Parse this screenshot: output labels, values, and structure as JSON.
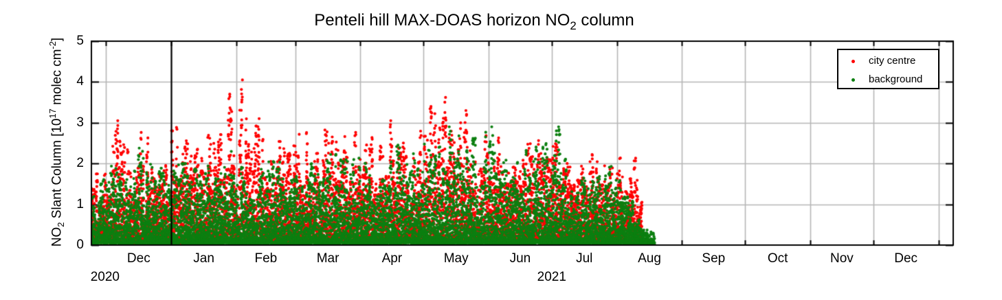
{
  "title": {
    "p1": "Penteli hill MAX-DOAS horizon NO",
    "sub": "2",
    "p2": " column"
  },
  "y_axis": {
    "label": {
      "p1": "NO",
      "sub": "2",
      "p2": " Slant Column [10",
      "sup1": "17",
      "p3": " molec cm",
      "sup2": "-2",
      "p4": "]"
    },
    "ticks": [
      "0",
      "1",
      "2",
      "3",
      "4",
      "5"
    ],
    "lim": [
      0,
      5
    ]
  },
  "x_axis": {
    "start_date": "2020-11-24",
    "days_total": 410,
    "tick_days": [
      7,
      38,
      69,
      97,
      128,
      158,
      189,
      219,
      250,
      281,
      311,
      342,
      372,
      403
    ],
    "month_labels": [
      {
        "text": "Dec",
        "mid_day": 22.5
      },
      {
        "text": "Jan",
        "mid_day": 53.5
      },
      {
        "text": "Feb",
        "mid_day": 83
      },
      {
        "text": "Mar",
        "mid_day": 112.5
      },
      {
        "text": "Apr",
        "mid_day": 143
      },
      {
        "text": "May",
        "mid_day": 173.5
      },
      {
        "text": "Jun",
        "mid_day": 204
      },
      {
        "text": "Jul",
        "mid_day": 234.5
      },
      {
        "text": "Aug",
        "mid_day": 265.5
      },
      {
        "text": "Sep",
        "mid_day": 296
      },
      {
        "text": "Oct",
        "mid_day": 326.5
      },
      {
        "text": "Nov",
        "mid_day": 357
      },
      {
        "text": "Dec",
        "mid_day": 387.5
      }
    ],
    "year_labels": [
      {
        "text": "2020",
        "mid_day": 6.5
      },
      {
        "text": "2021",
        "mid_day": 219
      }
    ],
    "year_separator_day": 38
  },
  "legend": {
    "items": [
      {
        "label": "city centre",
        "color": "#ff0000"
      },
      {
        "label": "background",
        "color": "#0c7f10"
      }
    ]
  },
  "style": {
    "grid_color": "#b5b5b5",
    "axis_color": "#000000",
    "marker_radius": 2.1
  },
  "chart_data": {
    "type": "scatter",
    "title": "Penteli hill MAX-DOAS horizon NO2 column",
    "xlabel": "",
    "ylabel": "NO2 Slant Column [10^17 molec cm^-2]",
    "ylim": [
      0,
      5
    ],
    "yticks": [
      0,
      1,
      2,
      3,
      4,
      5
    ],
    "x_range": [
      "2020-11-24",
      "2022-01-08"
    ],
    "x_tick_unit": "month",
    "grid": true,
    "legend_position": "top-right",
    "series": [
      {
        "name": "city centre",
        "color": "#ff0000",
        "marker": "dot",
        "data_start_day": 0,
        "data_end_day": 262,
        "daily_max_envelope": [
          [
            0,
            1.8
          ],
          [
            5,
            2.2
          ],
          [
            12,
            3.05
          ],
          [
            18,
            2.3
          ],
          [
            23,
            2.95
          ],
          [
            30,
            2.5
          ],
          [
            36,
            2.6
          ],
          [
            40,
            2.95
          ],
          [
            48,
            2.55
          ],
          [
            55,
            2.9
          ],
          [
            60,
            2.7
          ],
          [
            65,
            3.7
          ],
          [
            71,
            4.05
          ],
          [
            75,
            2.8
          ],
          [
            79,
            3.1
          ],
          [
            85,
            2.6
          ],
          [
            90,
            2.9
          ],
          [
            95,
            2.5
          ],
          [
            101,
            2.95
          ],
          [
            107,
            2.6
          ],
          [
            113,
            2.9
          ],
          [
            119,
            2.6
          ],
          [
            125,
            3.0
          ],
          [
            131,
            2.7
          ],
          [
            137,
            2.6
          ],
          [
            142,
            3.05
          ],
          [
            148,
            2.7
          ],
          [
            152,
            3.1
          ],
          [
            157,
            2.8
          ],
          [
            161,
            3.4
          ],
          [
            168,
            3.62
          ],
          [
            173,
            3.0
          ],
          [
            178,
            3.3
          ],
          [
            184,
            2.7
          ],
          [
            190,
            2.95
          ],
          [
            196,
            2.6
          ],
          [
            204,
            2.85
          ],
          [
            210,
            2.5
          ],
          [
            215,
            2.9
          ],
          [
            222,
            2.95
          ],
          [
            228,
            2.2
          ],
          [
            233,
            1.9
          ],
          [
            238,
            2.5
          ],
          [
            243,
            2.2
          ],
          [
            248,
            2.4
          ],
          [
            253,
            2.3
          ],
          [
            258,
            2.35
          ],
          [
            262,
            1.2
          ]
        ]
      },
      {
        "name": "background",
        "color": "#0c7f10",
        "marker": "dot",
        "data_start_day": 0,
        "data_end_day": 268,
        "daily_max_envelope": [
          [
            0,
            1.2
          ],
          [
            5,
            1.6
          ],
          [
            12,
            2.3
          ],
          [
            18,
            1.8
          ],
          [
            23,
            2.45
          ],
          [
            30,
            1.9
          ],
          [
            36,
            2.1
          ],
          [
            40,
            2.2
          ],
          [
            48,
            1.9
          ],
          [
            55,
            2.1
          ],
          [
            60,
            2.0
          ],
          [
            65,
            2.3
          ],
          [
            71,
            2.4
          ],
          [
            79,
            2.1
          ],
          [
            85,
            2.2
          ],
          [
            92,
            2.0
          ],
          [
            101,
            2.2
          ],
          [
            108,
            2.0
          ],
          [
            115,
            2.3
          ],
          [
            122,
            2.1
          ],
          [
            130,
            2.4
          ],
          [
            137,
            2.2
          ],
          [
            145,
            2.6
          ],
          [
            152,
            2.4
          ],
          [
            160,
            2.6
          ],
          [
            166,
            2.5
          ],
          [
            170,
            2.9
          ],
          [
            178,
            2.6
          ],
          [
            185,
            2.7
          ],
          [
            190,
            2.9
          ],
          [
            196,
            2.4
          ],
          [
            204,
            2.5
          ],
          [
            210,
            2.3
          ],
          [
            215,
            2.7
          ],
          [
            222,
            2.9
          ],
          [
            228,
            1.8
          ],
          [
            233,
            1.7
          ],
          [
            238,
            2.1
          ],
          [
            243,
            1.8
          ],
          [
            248,
            2.0
          ],
          [
            253,
            1.7
          ],
          [
            258,
            1.1
          ],
          [
            262,
            0.45
          ],
          [
            268,
            0.3
          ]
        ]
      }
    ],
    "notable_peaks": [
      {
        "series": "city centre",
        "day": 12,
        "value": 3.05
      },
      {
        "series": "city centre",
        "day": 65,
        "value": 3.7
      },
      {
        "series": "city centre",
        "day": 71,
        "value": 4.05
      },
      {
        "series": "city centre",
        "day": 79,
        "value": 3.1
      },
      {
        "series": "city centre",
        "day": 142,
        "value": 3.05
      },
      {
        "series": "city centre",
        "day": 161,
        "value": 3.4
      },
      {
        "series": "city centre",
        "day": 168,
        "value": 3.62
      },
      {
        "series": "city centre",
        "day": 178,
        "value": 3.3
      },
      {
        "series": "background",
        "day": 170,
        "value": 2.9
      },
      {
        "series": "background",
        "day": 190,
        "value": 2.9
      },
      {
        "series": "background",
        "day": 222,
        "value": 2.9
      }
    ],
    "generation": {
      "seed": 20211124,
      "points_per_day": 40,
      "y_skew": [
        2.0,
        2.45
      ],
      "y_floor": [
        0.08,
        0.04
      ]
    }
  }
}
